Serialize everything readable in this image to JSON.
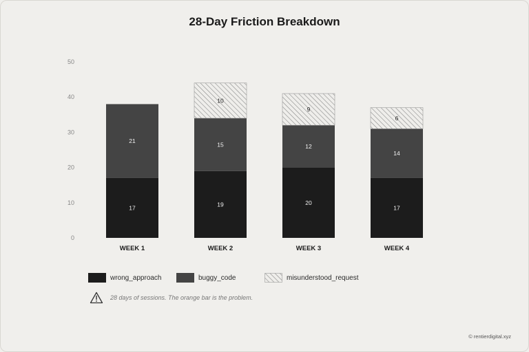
{
  "chart_data": {
    "type": "bar",
    "stacked": true,
    "title": "28-Day Friction Breakdown",
    "categories": [
      "WEEK 1",
      "WEEK 2",
      "WEEK 3",
      "WEEK 4"
    ],
    "series": [
      {
        "name": "wrong_approach",
        "values": [
          17,
          19,
          20,
          17
        ],
        "color": "#1c1c1c"
      },
      {
        "name": "buggy_code",
        "values": [
          21,
          15,
          12,
          14
        ],
        "color": "#444444"
      },
      {
        "name": "misunderstood_request",
        "values": [
          0,
          10,
          9,
          6
        ],
        "color": "hatch"
      }
    ],
    "ylim": [
      0,
      50
    ],
    "yticks": [
      0,
      10,
      20,
      30,
      40,
      50
    ],
    "grid": false,
    "legend": "bottom"
  },
  "note": {
    "icon": "warning-icon",
    "text": "28 days of sessions. The orange bar is the problem."
  },
  "credit": "© rentierdigital.xyz"
}
